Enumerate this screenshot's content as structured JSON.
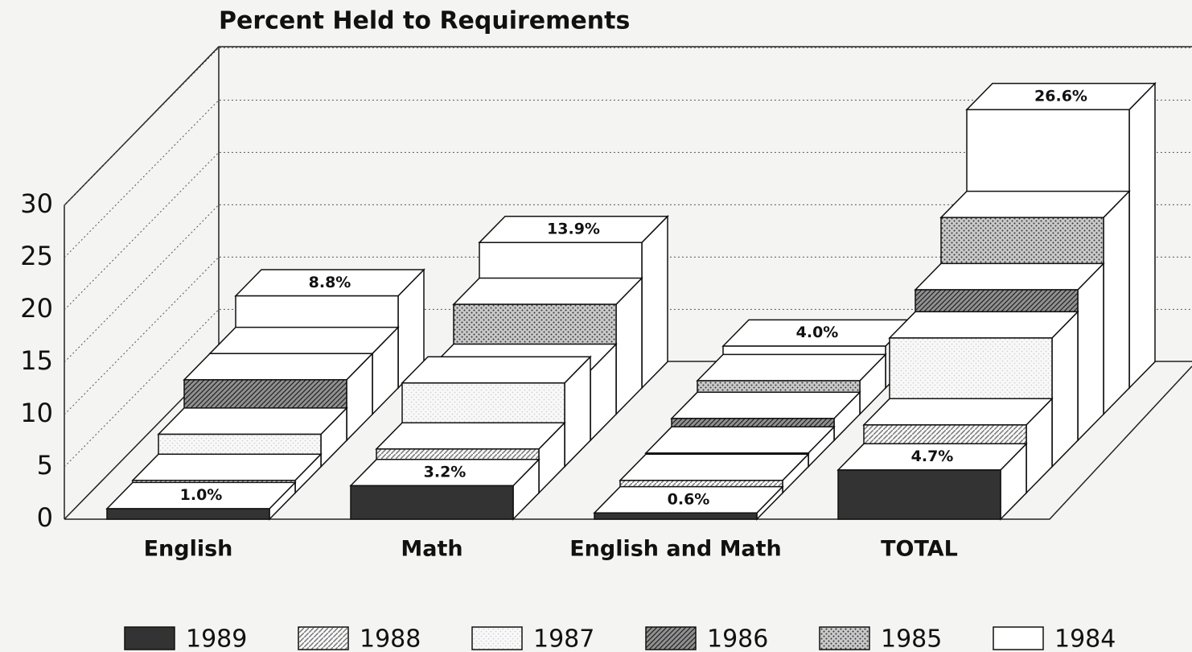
{
  "chart_data": {
    "type": "bar3d",
    "title": "Percent Held to Requirements",
    "categories": [
      "English",
      "Math",
      "English and Math",
      "TOTAL"
    ],
    "series": [
      {
        "name": "1989",
        "color": "#333333",
        "pattern": "solid",
        "values": [
          1.0,
          3.2,
          0.6,
          4.7
        ],
        "value_labels": [
          "1.0%",
          "3.2%",
          "0.6%",
          "4.7%"
        ]
      },
      {
        "name": "1988",
        "color": "#777777",
        "pattern": "hatch",
        "values": [
          1.2,
          4.2,
          1.2,
          6.5
        ]
      },
      {
        "name": "1987",
        "color": "#cccccc",
        "pattern": "dots",
        "values": [
          3.1,
          8.0,
          1.3,
          12.3
        ]
      },
      {
        "name": "1986",
        "color": "#666666",
        "pattern": "dense-hatch",
        "values": [
          5.8,
          6.7,
          2.1,
          14.4
        ]
      },
      {
        "name": "1985",
        "color": "#999999",
        "pattern": "grid-dots",
        "values": [
          5.8,
          10.5,
          3.2,
          18.8
        ]
      },
      {
        "name": "1984",
        "color": "#ffffff",
        "pattern": "solid",
        "values": [
          8.8,
          13.9,
          4.0,
          26.6
        ],
        "value_labels": [
          "8.8%",
          "13.9%",
          "4.0%",
          "26.6%"
        ]
      }
    ],
    "ylim": [
      0,
      30
    ],
    "yticks": [
      0,
      5,
      10,
      15,
      20,
      25,
      30
    ],
    "grid": true,
    "legend": "bottom"
  }
}
